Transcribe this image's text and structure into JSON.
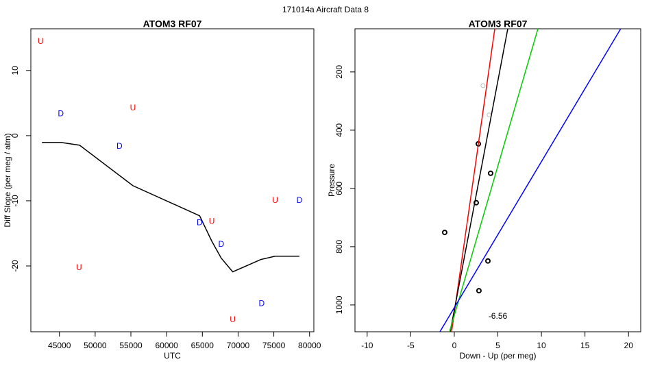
{
  "title": "171014a   Aircraft Data 8",
  "chart_data": [
    {
      "type": "scatter",
      "title": "ATOM3 RF07",
      "x_label": "UTC",
      "y_label": "Diff Slope (per meg / atm)",
      "xlim": [
        41000,
        80600
      ],
      "ylim": [
        -30.1,
        16.4
      ],
      "xticks": [
        45000,
        50000,
        55000,
        60000,
        65000,
        70000,
        75000,
        80000
      ],
      "yticks": [
        -20,
        -10,
        0,
        10
      ],
      "series": [
        {
          "type": "line",
          "color": "#000000",
          "x": [
            42550,
            45280,
            47830,
            55280,
            64620,
            66320,
            67640,
            69250,
            73210,
            75190,
            78580
          ],
          "values": [
            -1.05,
            -1.05,
            -1.47,
            -7.68,
            -12.3,
            -16.2,
            -18.8,
            -20.9,
            -19.0,
            -18.5,
            -18.5
          ]
        },
        {
          "type": "text-points",
          "marker": "U",
          "color": "#ff0000",
          "x": [
            42360,
            55280,
            75190,
            66320,
            47740,
            69250
          ],
          "values": [
            14.4,
            4.2,
            -10,
            -13.2,
            -20.3,
            -28.3
          ]
        },
        {
          "type": "text-points",
          "marker": "D",
          "color": "#0000ff",
          "x": [
            45190,
            53400,
            78580,
            64620,
            67640,
            73300
          ],
          "values": [
            3.3,
            -1.7,
            -10,
            -13.4,
            -16.7,
            -25.8
          ]
        }
      ]
    },
    {
      "type": "scatter",
      "title": "ATOM3 RF07",
      "x_label": "Down - Up (per meg)",
      "y_label": "Pressure",
      "xlim": [
        -11.4,
        21.4
      ],
      "ylim": [
        1092,
        52
      ],
      "xticks": [
        -10,
        -5,
        0,
        5,
        10,
        15,
        20
      ],
      "yticks": [
        200,
        400,
        600,
        800,
        1000
      ],
      "series": [
        {
          "type": "points",
          "color": "#000000",
          "x": [
            2.76,
            4.17,
            2.52,
            -1.1,
            3.86,
            2.83
          ],
          "values": [
            447,
            548,
            649,
            751,
            849,
            951
          ]
        },
        {
          "type": "points",
          "color": "#bbbbbb",
          "x": [
            3.3,
            4.0
          ],
          "values": [
            247,
            348
          ]
        },
        {
          "type": "line",
          "color": "#ff0000",
          "x": [
            -0.31,
            4.65
          ],
          "values": [
            1092,
            52
          ]
        },
        {
          "type": "line",
          "color": "#000000",
          "x": [
            -0.47,
            6.14
          ],
          "values": [
            1092,
            52
          ]
        },
        {
          "type": "line",
          "color": "#00cc00",
          "x": [
            -0.55,
            9.6
          ],
          "values": [
            1092,
            52
          ]
        },
        {
          "type": "line",
          "color": "#0000ff",
          "x": [
            -1.65,
            19.1
          ],
          "values": [
            1092,
            52
          ]
        }
      ],
      "annotations": [
        {
          "text": "-6.56",
          "x": 5.0,
          "y": 1040
        }
      ]
    }
  ]
}
